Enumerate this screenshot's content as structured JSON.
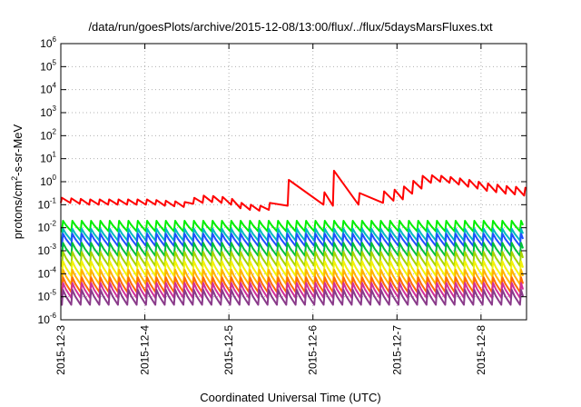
{
  "chart_data": {
    "type": "line",
    "title": "/data/run/goesPlots/archive/2015-12-08/13:00/flux/../flux/5daysMarsFluxes.txt",
    "xlabel": "Coordinated Universal Time (UTC)",
    "ylabel": "protons/cm²-s-sr-MeV",
    "y_scale": "log",
    "ylim": [
      1e-06,
      1000000.0
    ],
    "y_ticks": [
      {
        "value": -6,
        "base": "10",
        "exp": "-6"
      },
      {
        "value": -5,
        "base": "10",
        "exp": "-5"
      },
      {
        "value": -4,
        "base": "10",
        "exp": "-4"
      },
      {
        "value": -3,
        "base": "10",
        "exp": "-3"
      },
      {
        "value": -2,
        "base": "10",
        "exp": "-2"
      },
      {
        "value": -1,
        "base": "10",
        "exp": "-1"
      },
      {
        "value": 0,
        "base": "10",
        "exp": "0"
      },
      {
        "value": 1,
        "base": "10",
        "exp": "1"
      },
      {
        "value": 2,
        "base": "10",
        "exp": "2"
      },
      {
        "value": 3,
        "base": "10",
        "exp": "3"
      },
      {
        "value": 4,
        "base": "10",
        "exp": "4"
      },
      {
        "value": 5,
        "base": "10",
        "exp": "5"
      },
      {
        "value": 6,
        "base": "10",
        "exp": "6"
      }
    ],
    "xlim": [
      "2015-12-03 00:00",
      "2015-12-08 13:00"
    ],
    "x_ticks": [
      "2015-12-3",
      "2015-12-4",
      "2015-12-5",
      "2015-12-6",
      "2015-12-7",
      "2015-12-8"
    ],
    "grid": true,
    "legend": "none",
    "series": [
      {
        "color": "#ff0000",
        "x": [
          "2015-12-03 00:00",
          "2015-12-03 00:18",
          "2015-12-03 02:42",
          "2015-12-03 03:00",
          "2015-12-03 05:24",
          "2015-12-03 05:42",
          "2015-12-03 08:06",
          "2015-12-03 08:24",
          "2015-12-03 10:48",
          "2015-12-03 11:06",
          "2015-12-03 13:30",
          "2015-12-03 13:48",
          "2015-12-03 16:12",
          "2015-12-03 16:30",
          "2015-12-03 18:54",
          "2015-12-03 19:12",
          "2015-12-03 21:36",
          "2015-12-03 21:54",
          "2015-12-04 00:18",
          "2015-12-04 00:36",
          "2015-12-04 03:00",
          "2015-12-04 03:18",
          "2015-12-04 05:42",
          "2015-12-04 06:00",
          "2015-12-04 08:24",
          "2015-12-04 08:42",
          "2015-12-04 11:06",
          "2015-12-04 11:24",
          "2015-12-04 13:48",
          "2015-12-04 14:06",
          "2015-12-04 16:30",
          "2015-12-04 16:48",
          "2015-12-04 19:12",
          "2015-12-04 19:30",
          "2015-12-04 21:54",
          "2015-12-04 22:12",
          "2015-12-05 00:36",
          "2015-12-05 00:54",
          "2015-12-05 03:18",
          "2015-12-05 03:36",
          "2015-12-05 06:00",
          "2015-12-05 06:18",
          "2015-12-05 08:42",
          "2015-12-05 09:00",
          "2015-12-05 11:24",
          "2015-12-05 11:42",
          "2015-12-05 16:48",
          "2015-12-05 17:06",
          "2015-12-06 03:00",
          "2015-12-06 03:18",
          "2015-12-06 05:42",
          "2015-12-06 06:00",
          "2015-12-06 13:00",
          "2015-12-06 13:20",
          "2015-12-06 20:00",
          "2015-12-06 20:20",
          "2015-12-06 23:00",
          "2015-12-06 23:20",
          "2015-12-07 01:40",
          "2015-12-07 02:00",
          "2015-12-07 04:20",
          "2015-12-07 04:40",
          "2015-12-07 07:00",
          "2015-12-07 07:20",
          "2015-12-07 09:40",
          "2015-12-07 10:00",
          "2015-12-07 12:20",
          "2015-12-07 12:40",
          "2015-12-07 15:00",
          "2015-12-07 15:20",
          "2015-12-07 17:40",
          "2015-12-07 18:00",
          "2015-12-07 20:20",
          "2015-12-07 20:40",
          "2015-12-07 23:00",
          "2015-12-07 23:20",
          "2015-12-08 01:40",
          "2015-12-08 02:00",
          "2015-12-08 04:20",
          "2015-12-08 04:40",
          "2015-12-08 07:00",
          "2015-12-08 07:20",
          "2015-12-08 09:40",
          "2015-12-08 10:00",
          "2015-12-08 12:20",
          "2015-12-08 12:40",
          "2015-12-08 13:00"
        ],
        "values": [
          0.12,
          0.2,
          0.12,
          0.19,
          0.11,
          0.18,
          0.1,
          0.17,
          0.1,
          0.17,
          0.1,
          0.17,
          0.1,
          0.17,
          0.1,
          0.17,
          0.1,
          0.17,
          0.1,
          0.17,
          0.1,
          0.16,
          0.09,
          0.15,
          0.085,
          0.14,
          0.08,
          0.13,
          0.11,
          0.2,
          0.12,
          0.25,
          0.13,
          0.24,
          0.12,
          0.22,
          0.1,
          0.18,
          0.07,
          0.12,
          0.06,
          0.1,
          0.055,
          0.09,
          0.06,
          0.12,
          0.09,
          1.2,
          0.1,
          0.35,
          0.09,
          3.0,
          0.1,
          0.32,
          0.12,
          0.38,
          0.15,
          0.45,
          0.17,
          0.62,
          0.3,
          1.1,
          0.5,
          1.8,
          0.9,
          1.9,
          1.0,
          1.8,
          0.9,
          1.6,
          0.75,
          1.4,
          0.6,
          1.2,
          0.5,
          1.0,
          0.4,
          0.85,
          0.35,
          0.75,
          0.3,
          0.65,
          0.28,
          0.6,
          0.25,
          0.55,
          0.5
        ]
      },
      {
        "color": "#00ee00",
        "sawtooth": {
          "start": "2015-12-03 00:18",
          "period_hours": 2.67,
          "peak": 0.02,
          "trough": 0.007
        }
      },
      {
        "color": "#00bcbc",
        "sawtooth": {
          "start": "2015-12-03 00:18",
          "period_hours": 2.67,
          "peak": 0.009,
          "trough": 0.0028
        }
      },
      {
        "color": "#1f4fff",
        "sawtooth": {
          "start": "2015-12-03 00:18",
          "period_hours": 2.67,
          "peak": 0.0055,
          "trough": 0.0016
        }
      },
      {
        "color": "#00c03a",
        "sawtooth": {
          "start": "2015-12-03 00:18",
          "period_hours": 2.67,
          "peak": 0.0022,
          "trough": 0.0006
        }
      },
      {
        "color": "#a6d400",
        "sawtooth": {
          "start": "2015-12-03 00:18",
          "period_hours": 2.67,
          "peak": 0.0009,
          "trough": 0.00022
        }
      },
      {
        "color": "#f2f20a",
        "sawtooth": {
          "start": "2015-12-03 00:18",
          "period_hours": 2.67,
          "peak": 0.00035,
          "trough": 8e-05
        }
      },
      {
        "color": "#ffb400",
        "sawtooth": {
          "start": "2015-12-03 00:18",
          "period_hours": 2.67,
          "peak": 0.00015,
          "trough": 3.5e-05
        }
      },
      {
        "color": "#ff6a00",
        "sawtooth": {
          "start": "2015-12-03 00:18",
          "period_hours": 2.67,
          "peak": 7e-05,
          "trough": 1.6e-05
        }
      },
      {
        "color": "#d0309a",
        "sawtooth": {
          "start": "2015-12-03 00:18",
          "period_hours": 2.67,
          "peak": 4e-05,
          "trough": 9e-06
        }
      },
      {
        "color": "#8a3a8a",
        "sawtooth": {
          "start": "2015-12-03 00:18",
          "period_hours": 2.67,
          "peak": 2e-05,
          "trough": 4.5e-06
        }
      }
    ]
  }
}
